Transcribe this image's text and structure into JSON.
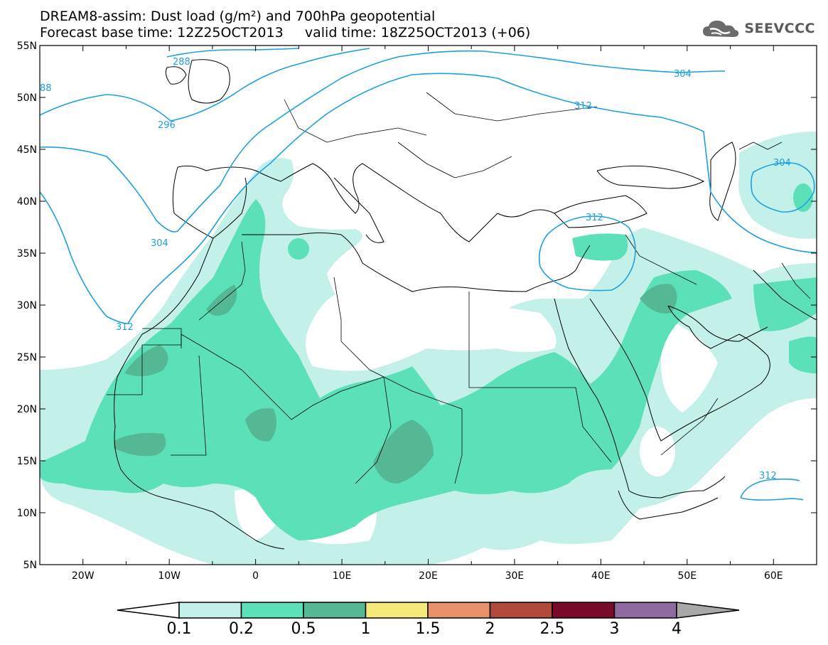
{
  "header": {
    "title_line1": "DREAM8-assim: Dust load (g/m²) and 700hPa geopotential",
    "title_line2": "Forecast base time: 12Z25OCT2013     valid time: 18Z25OCT2013 (+06)",
    "logo_text": "SEEVCCC"
  },
  "map": {
    "lon_range": [
      -25,
      65
    ],
    "lat_range": [
      5,
      55
    ],
    "lat_ticks": [
      "55N",
      "50N",
      "45N",
      "40N",
      "35N",
      "30N",
      "25N",
      "20N",
      "15N",
      "10N",
      "5N"
    ],
    "lon_ticks": [
      "20W",
      "10W",
      "0",
      "10E",
      "20E",
      "30E",
      "40E",
      "50E",
      "60E"
    ],
    "contour_color": "#1ea0e0",
    "contour_labels": [
      "288",
      "88",
      "296",
      "304",
      "304",
      "312",
      "312",
      "304",
      "312",
      "312"
    ],
    "dust_colors": {
      "c0_1": "#c4f0ea",
      "c0_2": "#5ce0b8",
      "c0_5": "#55b895"
    }
  },
  "colorbar": {
    "colors": [
      "#c4f0ea",
      "#5ce0b8",
      "#55b895",
      "#f6ea7a",
      "#e8906a",
      "#b04a3a",
      "#7a0a2a",
      "#8e6aa0",
      "#a8a8a8"
    ],
    "labels": [
      "0.1",
      "0.2",
      "0.5",
      "1",
      "1.5",
      "2",
      "2.5",
      "3",
      "4"
    ]
  }
}
